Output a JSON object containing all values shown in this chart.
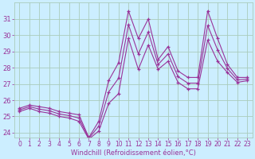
{
  "xlabel": "Windchill (Refroidissement éolien,°C)",
  "bg_color": "#cceeff",
  "grid_color": "#aaccbb",
  "line_color": "#993399",
  "x": [
    0,
    1,
    2,
    3,
    4,
    5,
    6,
    7,
    8,
    9,
    10,
    11,
    12,
    13,
    14,
    15,
    16,
    17,
    18,
    19,
    20,
    21,
    22,
    23
  ],
  "y_max": [
    25.5,
    25.7,
    25.6,
    25.5,
    25.3,
    25.2,
    25.1,
    23.7,
    24.7,
    27.2,
    28.3,
    31.5,
    29.8,
    31.0,
    28.5,
    29.3,
    27.8,
    27.4,
    27.4,
    31.5,
    29.8,
    28.2,
    27.4,
    27.4
  ],
  "y_min": [
    25.3,
    25.5,
    25.3,
    25.2,
    25.0,
    24.9,
    24.7,
    23.6,
    24.1,
    25.8,
    26.4,
    29.8,
    27.9,
    29.4,
    27.9,
    28.4,
    27.1,
    26.7,
    26.7,
    29.7,
    28.4,
    27.7,
    27.1,
    27.2
  ],
  "y_mean": [
    25.4,
    25.6,
    25.45,
    25.35,
    25.15,
    25.05,
    24.9,
    23.65,
    24.4,
    26.5,
    27.35,
    30.65,
    28.85,
    30.2,
    28.2,
    28.85,
    27.45,
    27.05,
    27.05,
    30.6,
    29.1,
    27.95,
    27.25,
    27.3
  ],
  "ylim_min": 23.7,
  "ylim_max": 32.0,
  "yticks": [
    24,
    25,
    26,
    27,
    28,
    29,
    30,
    31
  ],
  "xticks": [
    0,
    1,
    2,
    3,
    4,
    5,
    6,
    7,
    8,
    9,
    10,
    11,
    12,
    13,
    14,
    15,
    16,
    17,
    18,
    19,
    20,
    21,
    22,
    23
  ],
  "xlabel_fontsize": 6,
  "tick_fontsize": 5.5,
  "ytick_fontsize": 6.0,
  "marker_size": 3,
  "line_width": 0.8
}
